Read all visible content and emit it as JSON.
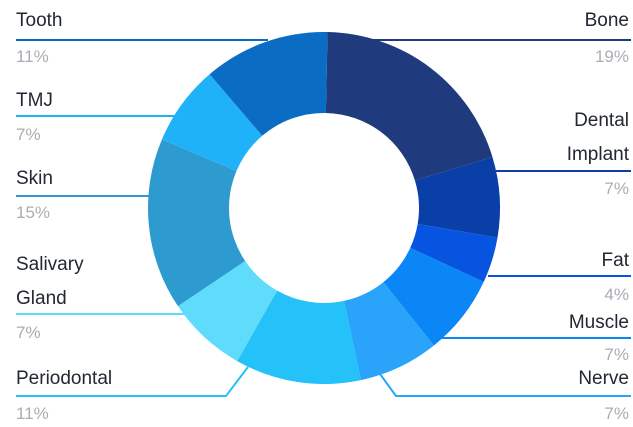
{
  "chart_data": {
    "type": "pie",
    "donut": true,
    "slices": [
      {
        "label": "Bone",
        "value": 19,
        "pct_label": "19%",
        "color": "#1f3a7d"
      },
      {
        "label": "Dental Implant",
        "value": 7,
        "pct_label": "7%",
        "color": "#0a3fa8"
      },
      {
        "label": "Fat",
        "value": 4,
        "pct_label": "4%",
        "color": "#0654e0"
      },
      {
        "label": "Muscle",
        "value": 7,
        "pct_label": "7%",
        "color": "#0a86f6"
      },
      {
        "label": "Nerve",
        "value": 7,
        "pct_label": "7%",
        "color": "#2aa4fb"
      },
      {
        "label": "Periodontal",
        "value": 11,
        "pct_label": "11%",
        "color": "#24c2f8"
      },
      {
        "label": "Salivary Gland",
        "value": 7,
        "pct_label": "7%",
        "color": "#5fdcfb"
      },
      {
        "label": "Skin",
        "value": 15,
        "pct_label": "15%",
        "color": "#2e9bd0"
      },
      {
        "label": "TMJ",
        "value": 7,
        "pct_label": "7%",
        "color": "#1fb2f8"
      },
      {
        "label": "Tooth",
        "value": 11,
        "pct_label": "11%",
        "color": "#0b6cc4"
      }
    ]
  }
}
